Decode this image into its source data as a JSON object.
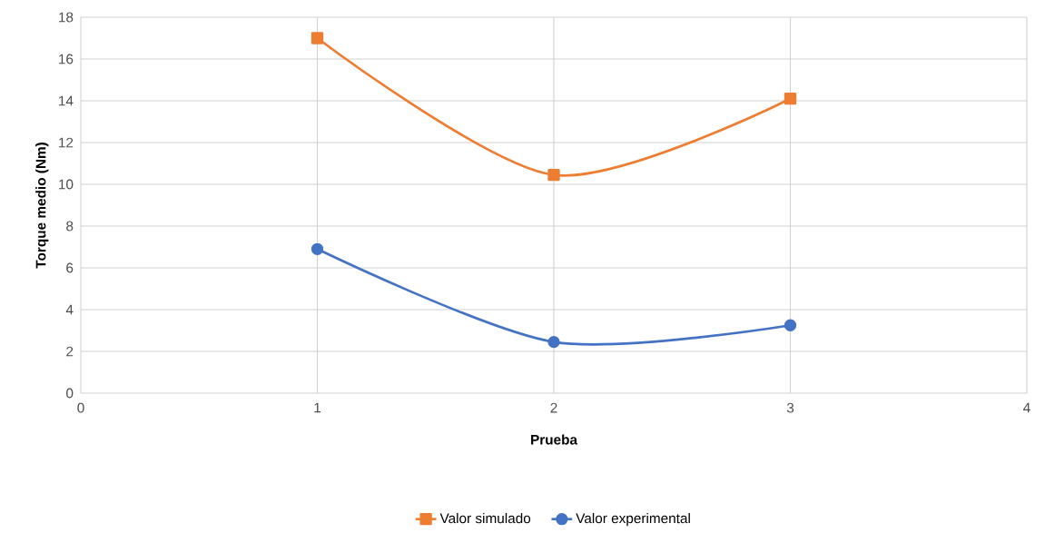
{
  "chart_data": {
    "type": "line",
    "xlabel": "Prueba",
    "ylabel": "Torque medio (Nm)",
    "x": [
      1,
      2,
      3
    ],
    "series": [
      {
        "name": "Valor simulado",
        "color": "#ed7d31",
        "marker": "square",
        "values": [
          17,
          10.45,
          14.1
        ]
      },
      {
        "name": "Valor experimental",
        "color": "#4472c4",
        "marker": "circle",
        "values": [
          6.9,
          2.45,
          3.25
        ]
      }
    ],
    "xlim": [
      0,
      4
    ],
    "xticks": [
      0,
      1,
      2,
      3,
      4
    ],
    "ylim": [
      0,
      18
    ],
    "yticks": [
      0,
      2,
      4,
      6,
      8,
      10,
      12,
      14,
      16,
      18
    ],
    "grid": true,
    "legend": "bottom",
    "line_style": "solid"
  }
}
